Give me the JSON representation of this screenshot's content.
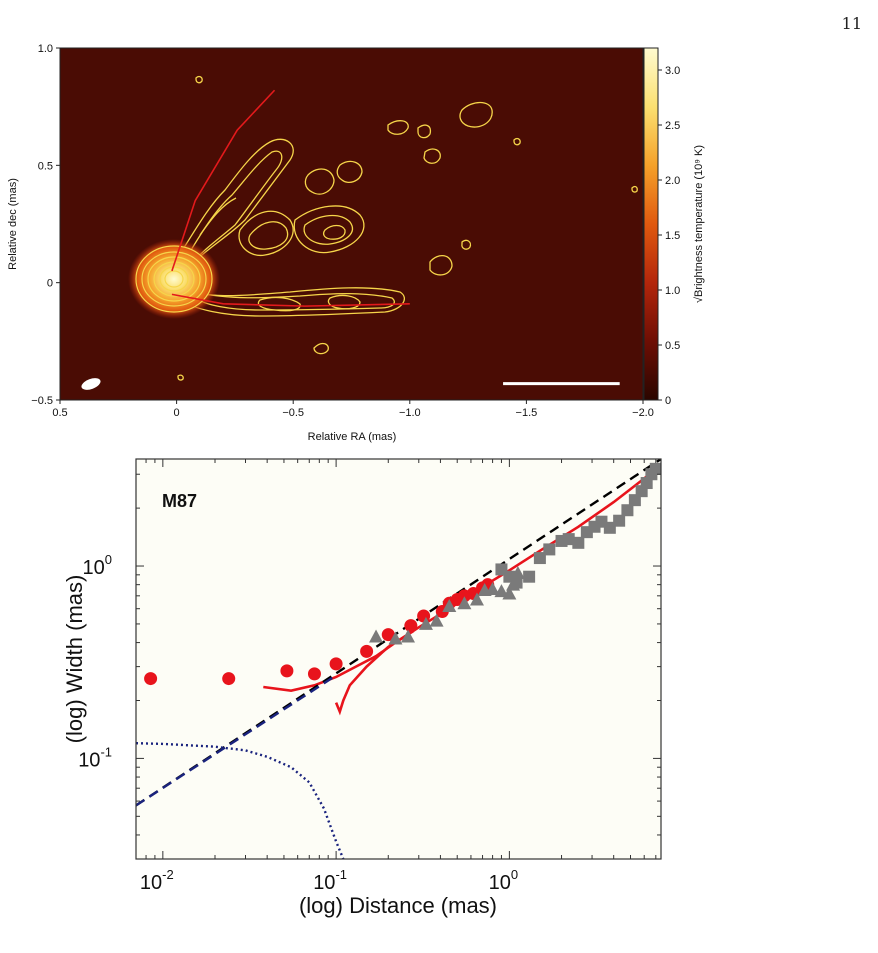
{
  "page": {
    "number": "11"
  },
  "chart_data": [
    {
      "type": "heatmap",
      "xlabel": "Relative RA (mas)",
      "ylabel": "Relative dec (mas)",
      "xlim": [
        0.5,
        -2.0
      ],
      "ylim": [
        -0.5,
        1.0
      ],
      "x_ticks": [
        0.5,
        0,
        -0.5,
        -1.0,
        -1.5,
        -2.0
      ],
      "x_tick_labels": [
        "0.5",
        "0",
        "−0.5",
        "−1.0",
        "−1.5",
        "−2.0"
      ],
      "y_ticks": [
        -0.5,
        0,
        0.5,
        1.0
      ],
      "y_tick_labels": [
        "−0.5",
        "0",
        "0.5",
        "1.0"
      ],
      "colorbar": {
        "label": "√Brightness temperature (10⁹ K)",
        "range": [
          0,
          3.2
        ],
        "ticks": [
          0,
          0.5,
          1.0,
          1.5,
          2.0,
          2.5,
          3.0
        ],
        "tick_labels": [
          "0",
          "0.5",
          "1.0",
          "1.5",
          "2.0",
          "2.5",
          "3.0"
        ],
        "colors": [
          "#2a0600",
          "#6e0e04",
          "#b3260b",
          "#e0590f",
          "#f5a12a",
          "#fbe071",
          "#fffbd0"
        ]
      },
      "core": {
        "x": 0.02,
        "y": 0.02
      },
      "edge_lines": [
        {
          "points": [
            [
              0.02,
              0.05
            ],
            [
              -0.08,
              0.35
            ],
            [
              -0.26,
              0.65
            ],
            [
              -0.42,
              0.82
            ]
          ]
        },
        {
          "points": [
            [
              0.02,
              -0.05
            ],
            [
              -0.2,
              -0.09
            ],
            [
              -0.55,
              -0.1
            ],
            [
              -1.0,
              -0.09
            ]
          ]
        }
      ],
      "scale_bar_x": [
        -1.4,
        -1.9
      ],
      "scale_bar_y": -0.43,
      "beam": {
        "x": 0.38,
        "y": -0.44
      },
      "colors": {
        "background": "#4a0c04",
        "contour": "#f6d54a",
        "edge_line": "#e31a1c"
      }
    },
    {
      "type": "scatter",
      "title": "M87",
      "xlabel": "(log) Distance (mas)",
      "ylabel": "(log) Width (mas)",
      "xscale": "log",
      "yscale": "log",
      "xlim": [
        0.007,
        7.5
      ],
      "ylim": [
        0.03,
        3.6
      ],
      "x_ticks": [
        0.01,
        0.1,
        1.0
      ],
      "x_tick_labels": [
        {
          "base": "10",
          "exp": "-2"
        },
        {
          "base": "10",
          "exp": "-1"
        },
        {
          "base": "10",
          "exp": "0"
        }
      ],
      "y_ticks": [
        0.1,
        1.0
      ],
      "y_tick_labels": [
        {
          "base": "10",
          "exp": "-1"
        },
        {
          "base": "10",
          "exp": "0"
        }
      ],
      "series": [
        {
          "marker": "circle",
          "color": "#e8141c",
          "points": [
            [
              0.0085,
              0.26
            ],
            [
              0.024,
              0.26
            ],
            [
              0.052,
              0.285
            ],
            [
              0.075,
              0.275
            ],
            [
              0.1,
              0.31
            ],
            [
              0.15,
              0.36
            ],
            [
              0.2,
              0.44
            ],
            [
              0.27,
              0.49
            ],
            [
              0.32,
              0.55
            ],
            [
              0.41,
              0.58
            ],
            [
              0.45,
              0.64
            ],
            [
              0.5,
              0.67
            ],
            [
              0.55,
              0.7
            ],
            [
              0.62,
              0.72
            ],
            [
              0.7,
              0.77
            ],
            [
              0.75,
              0.8
            ]
          ]
        },
        {
          "marker": "triangle",
          "color": "#7a7a7a",
          "points": [
            [
              0.17,
              0.43
            ],
            [
              0.22,
              0.42
            ],
            [
              0.26,
              0.43
            ],
            [
              0.33,
              0.5
            ],
            [
              0.38,
              0.52
            ],
            [
              0.45,
              0.62
            ],
            [
              0.55,
              0.64
            ],
            [
              0.65,
              0.67
            ],
            [
              0.72,
              0.75
            ],
            [
              0.8,
              0.76
            ],
            [
              0.9,
              0.74
            ],
            [
              1.0,
              0.72
            ],
            [
              1.05,
              0.8
            ],
            [
              1.12,
              0.92
            ]
          ]
        },
        {
          "marker": "square",
          "color": "#7a7a7a",
          "points": [
            [
              0.9,
              0.96
            ],
            [
              1.0,
              0.88
            ],
            [
              1.1,
              0.82
            ],
            [
              1.3,
              0.88
            ],
            [
              1.5,
              1.1
            ],
            [
              1.7,
              1.22
            ],
            [
              2.0,
              1.35
            ],
            [
              2.2,
              1.38
            ],
            [
              2.5,
              1.32
            ],
            [
              2.8,
              1.5
            ],
            [
              3.1,
              1.6
            ],
            [
              3.4,
              1.7
            ],
            [
              3.8,
              1.58
            ],
            [
              4.3,
              1.72
            ],
            [
              4.8,
              1.95
            ],
            [
              5.3,
              2.2
            ],
            [
              5.8,
              2.45
            ],
            [
              6.2,
              2.7
            ],
            [
              6.6,
              3.0
            ],
            [
              7.0,
              3.2
            ]
          ]
        },
        {
          "marker": "line",
          "style": "solid",
          "color": "#e8141c",
          "points": [
            [
              0.038,
              0.235
            ],
            [
              0.055,
              0.225
            ],
            [
              0.075,
              0.24
            ],
            [
              0.1,
              0.265
            ],
            [
              0.13,
              0.3
            ],
            [
              0.17,
              0.34
            ],
            [
              0.22,
              0.4
            ],
            [
              0.3,
              0.48
            ],
            [
              0.45,
              0.6
            ],
            [
              0.7,
              0.78
            ],
            [
              1.0,
              0.95
            ],
            [
              1.5,
              1.2
            ],
            [
              2.5,
              1.6
            ],
            [
              4.0,
              2.15
            ],
            [
              6.0,
              2.85
            ],
            [
              7.4,
              3.35
            ]
          ]
        },
        {
          "marker": "line",
          "style": "solid",
          "color": "#e8141c",
          "points": [
            [
              0.1,
              0.195
            ],
            [
              0.105,
              0.175
            ],
            [
              0.11,
              0.2
            ],
            [
              0.12,
              0.24
            ],
            [
              0.15,
              0.3
            ],
            [
              0.2,
              0.38
            ],
            [
              0.28,
              0.46
            ]
          ]
        },
        {
          "marker": "line",
          "style": "dashed",
          "color": "#000000",
          "points": [
            [
              0.007,
              0.057
            ],
            [
              7.5,
              3.6
            ]
          ]
        },
        {
          "marker": "line",
          "style": "dashed",
          "color": "#1a237e",
          "points": [
            [
              0.007,
              0.057
            ],
            [
              0.1,
              0.27
            ]
          ]
        },
        {
          "marker": "line",
          "style": "dotted",
          "color": "#1a237e",
          "points": [
            [
              0.007,
              0.12
            ],
            [
              0.01,
              0.119
            ],
            [
              0.02,
              0.115
            ],
            [
              0.03,
              0.11
            ],
            [
              0.04,
              0.102
            ],
            [
              0.055,
              0.09
            ],
            [
              0.07,
              0.075
            ],
            [
              0.085,
              0.055
            ],
            [
              0.1,
              0.037
            ],
            [
              0.11,
              0.03
            ]
          ]
        }
      ],
      "colors": {
        "plot_background": "#fdfdf6"
      }
    }
  ]
}
